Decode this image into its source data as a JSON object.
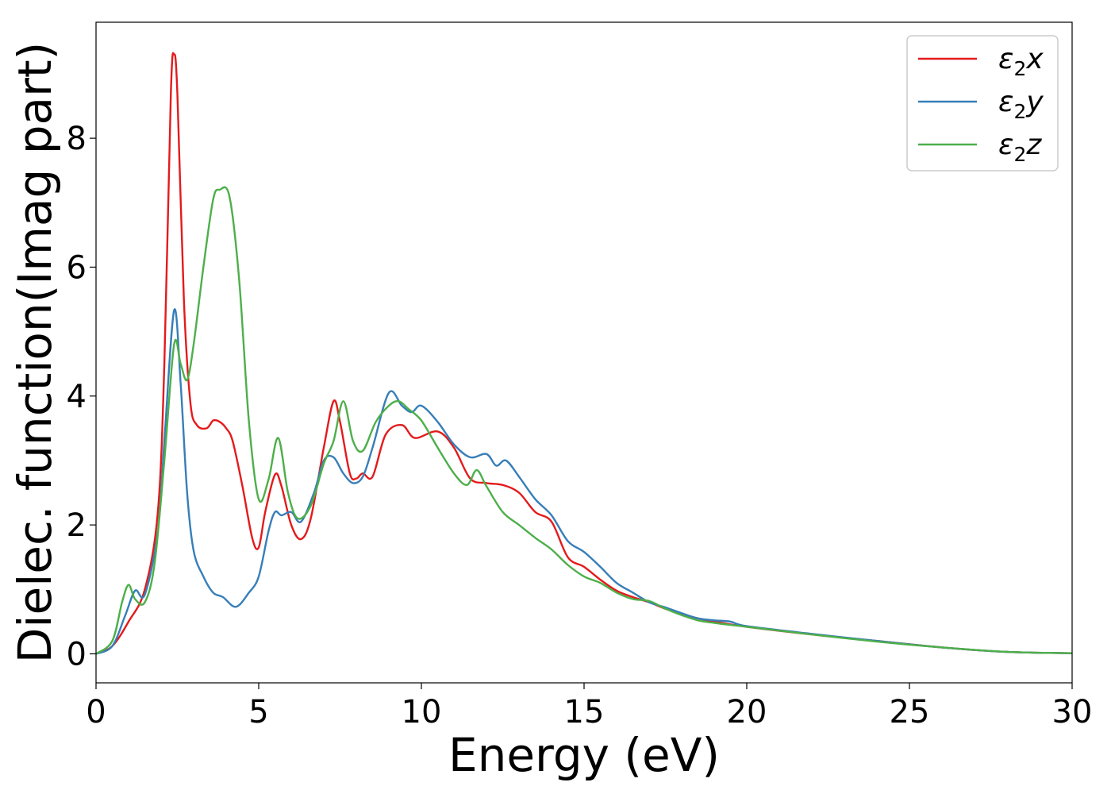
{
  "chart_data": {
    "type": "line",
    "title": "",
    "xlabel": "Energy (eV)",
    "ylabel": "Dielec. function(Imag part)",
    "xlim": [
      0,
      30
    ],
    "ylim": [
      -0.45,
      9.8
    ],
    "xticks": [
      0,
      5,
      10,
      15,
      20,
      25,
      30
    ],
    "yticks": [
      0,
      2,
      4,
      6,
      8
    ],
    "grid": false,
    "legend_position": "top-right",
    "series": [
      {
        "name": "ε2x",
        "legend": {
          "base": "ε",
          "sub": "2",
          "suffix": "x"
        },
        "color": "#e41a1c",
        "points": [
          [
            0,
            0
          ],
          [
            0.5,
            0.12
          ],
          [
            1,
            0.5
          ],
          [
            1.5,
            1.0
          ],
          [
            1.9,
            2.2
          ],
          [
            2.1,
            4.5
          ],
          [
            2.3,
            8.7
          ],
          [
            2.4,
            9.3
          ],
          [
            2.5,
            8.7
          ],
          [
            2.7,
            5.5
          ],
          [
            2.9,
            3.9
          ],
          [
            3.1,
            3.55
          ],
          [
            3.4,
            3.5
          ],
          [
            3.6,
            3.62
          ],
          [
            3.8,
            3.6
          ],
          [
            4.0,
            3.5
          ],
          [
            4.2,
            3.3
          ],
          [
            4.5,
            2.6
          ],
          [
            4.8,
            1.8
          ],
          [
            5.0,
            1.65
          ],
          [
            5.2,
            2.2
          ],
          [
            5.5,
            2.78
          ],
          [
            5.7,
            2.6
          ],
          [
            6.0,
            2.0
          ],
          [
            6.3,
            1.78
          ],
          [
            6.6,
            2.1
          ],
          [
            7.0,
            3.2
          ],
          [
            7.3,
            3.92
          ],
          [
            7.5,
            3.6
          ],
          [
            7.8,
            2.8
          ],
          [
            8.0,
            2.72
          ],
          [
            8.2,
            2.8
          ],
          [
            8.5,
            2.75
          ],
          [
            8.9,
            3.4
          ],
          [
            9.4,
            3.55
          ],
          [
            9.8,
            3.35
          ],
          [
            10.5,
            3.45
          ],
          [
            11.0,
            3.2
          ],
          [
            11.5,
            2.72
          ],
          [
            12.0,
            2.65
          ],
          [
            12.5,
            2.62
          ],
          [
            13.0,
            2.5
          ],
          [
            13.5,
            2.2
          ],
          [
            14.0,
            2.05
          ],
          [
            14.5,
            1.5
          ],
          [
            15.0,
            1.35
          ],
          [
            15.5,
            1.15
          ],
          [
            16.0,
            0.98
          ],
          [
            16.5,
            0.88
          ],
          [
            17.0,
            0.8
          ],
          [
            17.5,
            0.7
          ],
          [
            18.0,
            0.62
          ],
          [
            18.5,
            0.55
          ],
          [
            19.0,
            0.5
          ],
          [
            20.0,
            0.42
          ],
          [
            22.0,
            0.3
          ],
          [
            24.0,
            0.2
          ],
          [
            26.0,
            0.1
          ],
          [
            28.0,
            0.03
          ],
          [
            30.0,
            0.01
          ]
        ]
      },
      {
        "name": "ε2y",
        "legend": {
          "base": "ε",
          "sub": "2",
          "suffix": "y"
        },
        "color": "#377eb8",
        "points": [
          [
            0,
            0
          ],
          [
            0.5,
            0.12
          ],
          [
            0.9,
            0.6
          ],
          [
            1.2,
            0.98
          ],
          [
            1.5,
            0.92
          ],
          [
            1.9,
            1.9
          ],
          [
            2.1,
            3.3
          ],
          [
            2.4,
            5.33
          ],
          [
            2.6,
            4.2
          ],
          [
            2.8,
            2.5
          ],
          [
            3.0,
            1.6
          ],
          [
            3.3,
            1.2
          ],
          [
            3.6,
            0.95
          ],
          [
            3.9,
            0.88
          ],
          [
            4.3,
            0.73
          ],
          [
            4.7,
            0.95
          ],
          [
            5.0,
            1.2
          ],
          [
            5.3,
            1.9
          ],
          [
            5.5,
            2.2
          ],
          [
            5.7,
            2.15
          ],
          [
            6.0,
            2.2
          ],
          [
            6.3,
            2.05
          ],
          [
            6.7,
            2.5
          ],
          [
            7.0,
            3.0
          ],
          [
            7.3,
            3.05
          ],
          [
            7.6,
            2.8
          ],
          [
            7.9,
            2.65
          ],
          [
            8.2,
            2.75
          ],
          [
            8.5,
            3.2
          ],
          [
            9.0,
            4.05
          ],
          [
            9.4,
            3.85
          ],
          [
            9.7,
            3.75
          ],
          [
            10.0,
            3.85
          ],
          [
            10.5,
            3.6
          ],
          [
            11.0,
            3.25
          ],
          [
            11.5,
            3.05
          ],
          [
            12.0,
            3.1
          ],
          [
            12.3,
            2.92
          ],
          [
            12.6,
            3.0
          ],
          [
            13.0,
            2.75
          ],
          [
            13.5,
            2.4
          ],
          [
            14.0,
            2.15
          ],
          [
            14.5,
            1.75
          ],
          [
            15.0,
            1.58
          ],
          [
            15.5,
            1.35
          ],
          [
            16.0,
            1.1
          ],
          [
            16.5,
            0.95
          ],
          [
            17.0,
            0.8
          ],
          [
            17.5,
            0.72
          ],
          [
            18.0,
            0.63
          ],
          [
            18.5,
            0.55
          ],
          [
            19.0,
            0.52
          ],
          [
            19.5,
            0.5
          ],
          [
            20.0,
            0.43
          ],
          [
            22.0,
            0.31
          ],
          [
            24.0,
            0.2
          ],
          [
            26.0,
            0.1
          ],
          [
            28.0,
            0.03
          ],
          [
            30.0,
            0.01
          ]
        ]
      },
      {
        "name": "ε2z",
        "legend": {
          "base": "ε",
          "sub": "2",
          "suffix": "z"
        },
        "color": "#4daf4a",
        "points": [
          [
            0,
            0
          ],
          [
            0.5,
            0.2
          ],
          [
            0.8,
            0.8
          ],
          [
            1.0,
            1.07
          ],
          [
            1.2,
            0.85
          ],
          [
            1.5,
            0.8
          ],
          [
            1.8,
            1.4
          ],
          [
            2.1,
            3.0
          ],
          [
            2.4,
            4.8
          ],
          [
            2.6,
            4.5
          ],
          [
            2.8,
            4.25
          ],
          [
            3.0,
            4.8
          ],
          [
            3.3,
            6.0
          ],
          [
            3.6,
            7.05
          ],
          [
            3.8,
            7.2
          ],
          [
            4.1,
            7.1
          ],
          [
            4.4,
            5.8
          ],
          [
            4.7,
            3.6
          ],
          [
            5.0,
            2.4
          ],
          [
            5.3,
            2.7
          ],
          [
            5.6,
            3.35
          ],
          [
            5.9,
            2.5
          ],
          [
            6.2,
            2.1
          ],
          [
            6.6,
            2.3
          ],
          [
            7.0,
            2.95
          ],
          [
            7.3,
            3.3
          ],
          [
            7.6,
            3.92
          ],
          [
            7.9,
            3.3
          ],
          [
            8.2,
            3.15
          ],
          [
            8.6,
            3.6
          ],
          [
            9.0,
            3.85
          ],
          [
            9.3,
            3.92
          ],
          [
            9.6,
            3.8
          ],
          [
            10.0,
            3.62
          ],
          [
            10.5,
            3.2
          ],
          [
            11.0,
            2.8
          ],
          [
            11.4,
            2.62
          ],
          [
            11.7,
            2.85
          ],
          [
            12.0,
            2.6
          ],
          [
            12.5,
            2.2
          ],
          [
            13.0,
            2.0
          ],
          [
            13.5,
            1.8
          ],
          [
            14.0,
            1.62
          ],
          [
            14.5,
            1.38
          ],
          [
            15.0,
            1.2
          ],
          [
            15.5,
            1.1
          ],
          [
            16.0,
            0.95
          ],
          [
            16.5,
            0.85
          ],
          [
            17.0,
            0.82
          ],
          [
            17.5,
            0.7
          ],
          [
            18.0,
            0.6
          ],
          [
            18.5,
            0.52
          ],
          [
            19.0,
            0.48
          ],
          [
            20.0,
            0.42
          ],
          [
            22.0,
            0.3
          ],
          [
            24.0,
            0.19
          ],
          [
            26.0,
            0.1
          ],
          [
            28.0,
            0.03
          ],
          [
            30.0,
            0.01
          ]
        ]
      }
    ]
  }
}
